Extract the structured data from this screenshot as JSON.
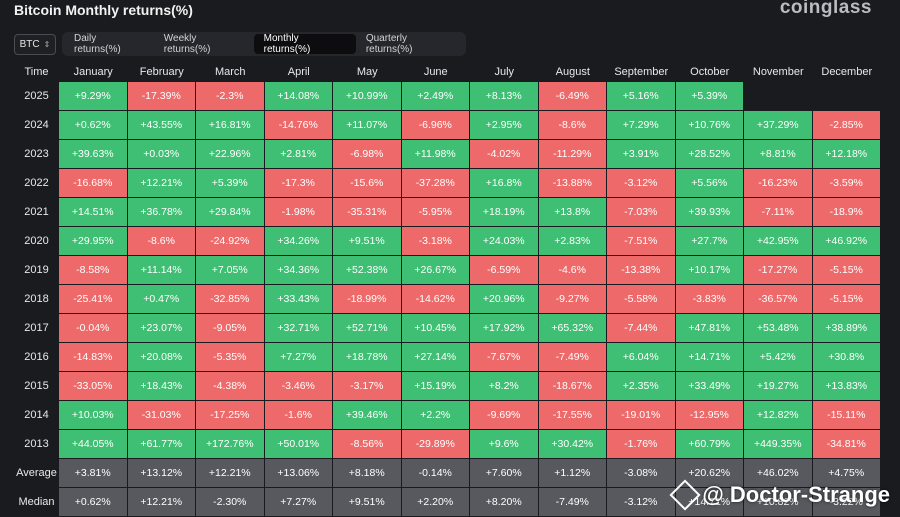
{
  "header": {
    "title": "Bitcoin Monthly returns(%)",
    "brand": "coinglass"
  },
  "asset_select": {
    "value": "BTC",
    "icon": "chevron-updown-icon"
  },
  "tabs": [
    {
      "label": "Daily returns(%)",
      "active": false
    },
    {
      "label": "Weekly returns(%)",
      "active": false
    },
    {
      "label": "Monthly returns(%)",
      "active": true
    },
    {
      "label": "Quarterly returns(%)",
      "active": false
    }
  ],
  "colors": {
    "positive": "#3fbf74",
    "negative": "#ee6a6a",
    "aggregate": "#57595f",
    "background": "#1a1b1f"
  },
  "chart_data": {
    "type": "table",
    "row_header": "Time",
    "columns": [
      "January",
      "February",
      "March",
      "April",
      "May",
      "June",
      "July",
      "August",
      "September",
      "October",
      "November",
      "December"
    ],
    "rows": [
      {
        "label": "2025",
        "values": [
          "+9.29%",
          "-17.39%",
          "-2.3%",
          "+14.08%",
          "+10.99%",
          "+2.49%",
          "+8.13%",
          "-6.49%",
          "+5.16%",
          "+5.39%",
          "",
          ""
        ]
      },
      {
        "label": "2024",
        "values": [
          "+0.62%",
          "+43.55%",
          "+16.81%",
          "-14.76%",
          "+11.07%",
          "-6.96%",
          "+2.95%",
          "-8.6%",
          "+7.29%",
          "+10.76%",
          "+37.29%",
          "-2.85%"
        ]
      },
      {
        "label": "2023",
        "values": [
          "+39.63%",
          "+0.03%",
          "+22.96%",
          "+2.81%",
          "-6.98%",
          "+11.98%",
          "-4.02%",
          "-11.29%",
          "+3.91%",
          "+28.52%",
          "+8.81%",
          "+12.18%"
        ]
      },
      {
        "label": "2022",
        "values": [
          "-16.68%",
          "+12.21%",
          "+5.39%",
          "-17.3%",
          "-15.6%",
          "-37.28%",
          "+16.8%",
          "-13.88%",
          "-3.12%",
          "+5.56%",
          "-16.23%",
          "-3.59%"
        ]
      },
      {
        "label": "2021",
        "values": [
          "+14.51%",
          "+36.78%",
          "+29.84%",
          "-1.98%",
          "-35.31%",
          "-5.95%",
          "+18.19%",
          "+13.8%",
          "-7.03%",
          "+39.93%",
          "-7.11%",
          "-18.9%"
        ]
      },
      {
        "label": "2020",
        "values": [
          "+29.95%",
          "-8.6%",
          "-24.92%",
          "+34.26%",
          "+9.51%",
          "-3.18%",
          "+24.03%",
          "+2.83%",
          "-7.51%",
          "+27.7%",
          "+42.95%",
          "+46.92%"
        ]
      },
      {
        "label": "2019",
        "values": [
          "-8.58%",
          "+11.14%",
          "+7.05%",
          "+34.36%",
          "+52.38%",
          "+26.67%",
          "-6.59%",
          "-4.6%",
          "-13.38%",
          "+10.17%",
          "-17.27%",
          "-5.15%"
        ]
      },
      {
        "label": "2018",
        "values": [
          "-25.41%",
          "+0.47%",
          "-32.85%",
          "+33.43%",
          "-18.99%",
          "-14.62%",
          "+20.96%",
          "-9.27%",
          "-5.58%",
          "-3.83%",
          "-36.57%",
          "-5.15%"
        ]
      },
      {
        "label": "2017",
        "values": [
          "-0.04%",
          "+23.07%",
          "-9.05%",
          "+32.71%",
          "+52.71%",
          "+10.45%",
          "+17.92%",
          "+65.32%",
          "-7.44%",
          "+47.81%",
          "+53.48%",
          "+38.89%"
        ]
      },
      {
        "label": "2016",
        "values": [
          "-14.83%",
          "+20.08%",
          "-5.35%",
          "+7.27%",
          "+18.78%",
          "+27.14%",
          "-7.67%",
          "-7.49%",
          "+6.04%",
          "+14.71%",
          "+5.42%",
          "+30.8%"
        ]
      },
      {
        "label": "2015",
        "values": [
          "-33.05%",
          "+18.43%",
          "-4.38%",
          "-3.46%",
          "-3.17%",
          "+15.19%",
          "+8.2%",
          "-18.67%",
          "+2.35%",
          "+33.49%",
          "+19.27%",
          "+13.83%"
        ]
      },
      {
        "label": "2014",
        "values": [
          "+10.03%",
          "-31.03%",
          "-17.25%",
          "-1.6%",
          "+39.46%",
          "+2.2%",
          "-9.69%",
          "-17.55%",
          "-19.01%",
          "-12.95%",
          "+12.82%",
          "-15.11%"
        ]
      },
      {
        "label": "2013",
        "values": [
          "+44.05%",
          "+61.77%",
          "+172.76%",
          "+50.01%",
          "-8.56%",
          "-29.89%",
          "+9.6%",
          "+30.42%",
          "-1.76%",
          "+60.79%",
          "+449.35%",
          "-34.81%"
        ]
      }
    ],
    "aggregates": [
      {
        "label": "Average",
        "values": [
          "+3.81%",
          "+13.12%",
          "+12.21%",
          "+13.06%",
          "+8.18%",
          "-0.14%",
          "+7.60%",
          "+1.12%",
          "-3.08%",
          "+20.62%",
          "+46.02%",
          "+4.75%"
        ]
      },
      {
        "label": "Median",
        "values": [
          "+0.62%",
          "+12.21%",
          "-2.30%",
          "+7.27%",
          "+9.51%",
          "+2.20%",
          "+8.20%",
          "-7.49%",
          "-3.12%",
          "+14.71%",
          "+10.82%",
          "-3.22%"
        ]
      }
    ]
  },
  "watermark": {
    "text": "@ Doctor-Strange"
  }
}
